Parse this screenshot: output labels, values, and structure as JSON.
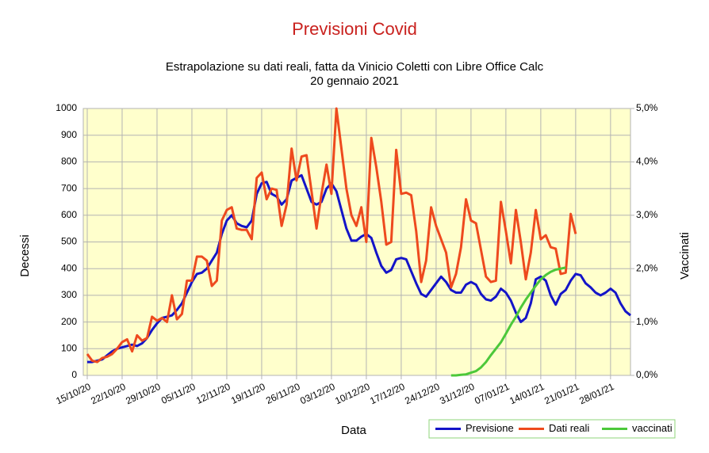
{
  "chart_data": {
    "type": "line",
    "title": "Previsioni Covid",
    "subtitle": [
      "Estrapolazione su dati reali, fatta da Vinicio Coletti con Libre Office Calc",
      "20 gennaio 2021"
    ],
    "x_label": "Data",
    "y_label": "Decessi",
    "y2_label": "Vaccinati",
    "categories": [
      "15/10/20",
      null,
      null,
      null,
      null,
      null,
      null,
      "22/10/20",
      null,
      null,
      null,
      null,
      null,
      null,
      "29/10/20",
      null,
      null,
      null,
      null,
      null,
      null,
      "05/11/20",
      null,
      null,
      null,
      null,
      null,
      null,
      "12/11/20",
      null,
      null,
      null,
      null,
      null,
      null,
      "19/11/20",
      null,
      null,
      null,
      null,
      null,
      null,
      "26/11/20",
      null,
      null,
      null,
      null,
      null,
      null,
      "03/12/20",
      null,
      null,
      null,
      null,
      null,
      null,
      "10/12/20",
      null,
      null,
      null,
      null,
      null,
      null,
      "17/12/20",
      null,
      null,
      null,
      null,
      null,
      null,
      "24/12/20",
      null,
      null,
      null,
      null,
      null,
      null,
      "31/12/20",
      null,
      null,
      null,
      null,
      null,
      null,
      "07/01/21",
      null,
      null,
      null,
      null,
      null,
      null,
      "14/01/21",
      null,
      null,
      null,
      null,
      null,
      null,
      "21/01/21",
      null,
      null,
      null,
      null,
      null,
      null,
      "28/01/21",
      null,
      null,
      null,
      null
    ],
    "ylim": [
      0,
      1000
    ],
    "yticks": [
      0,
      100,
      200,
      300,
      400,
      500,
      600,
      700,
      800,
      900,
      1000
    ],
    "y2lim": [
      0,
      5
    ],
    "y2ticks": [
      {
        "value": 0,
        "label": "0,0%"
      },
      {
        "value": 1,
        "label": "1,0%"
      },
      {
        "value": 2,
        "label": "2,0%"
      },
      {
        "value": 3,
        "label": "3,0%"
      },
      {
        "value": 4,
        "label": "4,0%"
      },
      {
        "value": 5,
        "label": "5,0%"
      }
    ],
    "grid": true,
    "background": "#ffffcc",
    "legend": "bottom-right",
    "series": [
      {
        "name": "Previsione",
        "color": "#1414c8",
        "values": [
          50,
          50,
          55,
          60,
          75,
          90,
          100,
          105,
          110,
          115,
          110,
          120,
          140,
          170,
          195,
          215,
          220,
          225,
          245,
          270,
          310,
          350,
          380,
          385,
          400,
          430,
          460,
          530,
          580,
          600,
          570,
          560,
          555,
          580,
          680,
          720,
          725,
          680,
          670,
          640,
          660,
          730,
          740,
          750,
          700,
          650,
          640,
          650,
          700,
          720,
          690,
          620,
          550,
          505,
          505,
          520,
          530,
          515,
          460,
          410,
          385,
          395,
          435,
          440,
          435,
          390,
          345,
          305,
          295,
          320,
          345,
          370,
          350,
          320,
          310,
          310,
          340,
          350,
          340,
          305,
          285,
          280,
          295,
          325,
          310,
          280,
          235,
          200,
          215,
          270,
          360,
          370,
          355,
          300,
          265,
          305,
          320,
          355,
          380,
          375,
          345,
          330,
          310,
          300,
          310,
          325,
          310,
          270,
          240,
          225
        ]
      },
      {
        "name": "Dati reali",
        "color": "#ee4a1e",
        "values": [
          80,
          55,
          50,
          65,
          70,
          80,
          100,
          125,
          135,
          90,
          150,
          130,
          140,
          220,
          205,
          215,
          200,
          300,
          210,
          230,
          355,
          355,
          445,
          445,
          430,
          335,
          355,
          580,
          620,
          630,
          550,
          545,
          545,
          510,
          740,
          760,
          660,
          700,
          695,
          560,
          640,
          850,
          730,
          820,
          825,
          690,
          550,
          680,
          790,
          680,
          1000,
          850,
          700,
          600,
          560,
          630,
          500,
          890,
          780,
          650,
          490,
          500,
          845,
          680,
          685,
          675,
          540,
          350,
          430,
          630,
          560,
          510,
          460,
          330,
          380,
          480,
          660,
          580,
          570,
          470,
          370,
          350,
          355,
          650,
          540,
          420,
          620,
          500,
          360,
          460,
          620,
          510,
          525,
          480,
          475,
          380,
          385,
          605,
          530,
          null,
          null,
          null,
          null,
          null,
          null,
          null,
          null,
          null,
          null,
          null
        ]
      },
      {
        "name": "vaccinati",
        "color": "#4cc83a",
        "axis": "y2",
        "values": [
          null,
          null,
          null,
          null,
          null,
          null,
          null,
          null,
          null,
          null,
          null,
          null,
          null,
          null,
          null,
          null,
          null,
          null,
          null,
          null,
          null,
          null,
          null,
          null,
          null,
          null,
          null,
          null,
          null,
          null,
          null,
          null,
          null,
          null,
          null,
          null,
          null,
          null,
          null,
          null,
          null,
          null,
          null,
          null,
          null,
          null,
          null,
          null,
          null,
          null,
          null,
          null,
          null,
          null,
          null,
          null,
          null,
          null,
          null,
          null,
          null,
          null,
          null,
          null,
          null,
          null,
          null,
          null,
          null,
          null,
          null,
          null,
          null,
          0,
          0,
          0.01,
          0.02,
          0.05,
          0.08,
          0.15,
          0.25,
          0.38,
          0.5,
          0.62,
          0.78,
          0.95,
          1.1,
          1.27,
          1.42,
          1.55,
          1.68,
          1.8,
          1.88,
          1.94,
          1.98,
          2.0,
          2.02,
          null,
          null,
          null,
          null,
          null,
          null,
          null,
          null,
          null,
          null,
          null,
          null,
          null
        ]
      }
    ]
  }
}
